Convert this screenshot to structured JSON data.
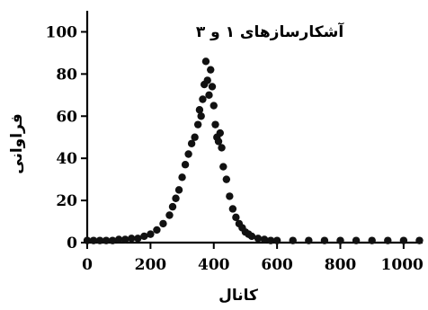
{
  "chart_data": {
    "type": "scatter",
    "title": "آشکارسازهای ۱ و ۳",
    "xlabel": "کانال",
    "ylabel": "فراوانی",
    "xlim": [
      0,
      1060
    ],
    "ylim": [
      0,
      110
    ],
    "xticks": [
      0,
      200,
      400,
      600,
      800,
      1000
    ],
    "yticks": [
      0,
      20,
      40,
      60,
      80,
      100
    ],
    "grid": false,
    "series": [
      {
        "x": [
          0,
          20,
          40,
          60,
          80,
          100,
          120,
          140,
          160,
          180,
          200,
          220,
          240,
          260,
          270,
          280,
          290,
          300,
          310,
          320,
          330,
          340,
          350,
          355,
          360,
          365,
          370,
          375,
          380,
          385,
          390,
          395,
          400,
          405,
          410,
          415,
          420,
          425,
          430,
          440,
          450,
          460,
          470,
          480,
          490,
          500,
          510,
          520,
          540,
          560,
          580,
          600,
          650,
          700,
          750,
          800,
          850,
          900,
          950,
          1000,
          1050
        ],
        "y": [
          1,
          1,
          1,
          1,
          1,
          1.5,
          1.5,
          2,
          2,
          3,
          4,
          6,
          9,
          13,
          17,
          21,
          25,
          31,
          37,
          42,
          47,
          50,
          56,
          63,
          60,
          68,
          75,
          86,
          77,
          70,
          82,
          74,
          65,
          56,
          50,
          48,
          52,
          45,
          36,
          30,
          22,
          16,
          12,
          9,
          7,
          5,
          4,
          3,
          2,
          1.5,
          1,
          1,
          1,
          1,
          1,
          1,
          1,
          1,
          1,
          1,
          1
        ]
      }
    ]
  }
}
